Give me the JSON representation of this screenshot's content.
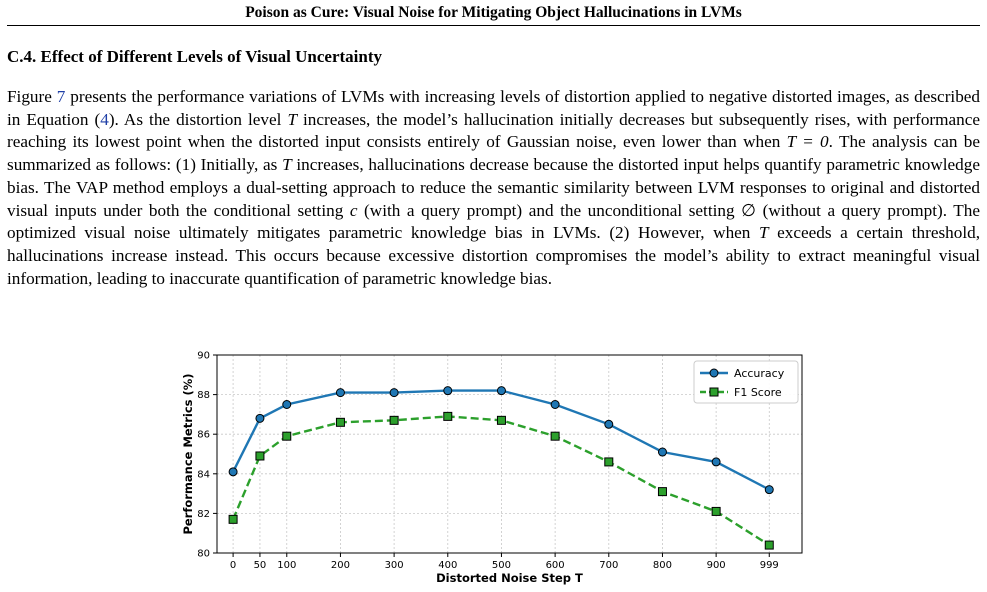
{
  "header": {
    "title": "Poison as Cure: Visual Noise for Mitigating Object Hallucinations in LVMs"
  },
  "section": {
    "title": "C.4. Effect of Different Levels of Visual Uncertainty"
  },
  "paragraph": {
    "s1a": "Figure ",
    "fig_ref": "7",
    "s1b": " presents the performance variations of LVMs with increasing levels of distortion applied to negative distorted images, as described in Equation (",
    "eq_ref": "4",
    "s1c": "). As the distortion level ",
    "var_T": "T",
    "s2": " increases, the model’s hallucination initially decreases but subsequently rises, with performance reaching its lowest point when the distorted input consists entirely of Gaussian noise, even lower than when ",
    "var_T_eq0": "T = 0",
    "s3": ". The analysis can be summarized as follows: (1) Initially, as ",
    "s4": " increases, hallucinations decrease because the distorted input helps quantify parametric knowledge bias. The VAP method employs a dual-setting approach to reduce the semantic similarity between LVM responses to original and distorted visual inputs under both the conditional setting ",
    "var_c": "c",
    "s5": " (with a query prompt) and the unconditional setting ",
    "var_empty": "∅",
    "s6": " (without a query prompt). The optimized visual noise ultimately mitigates parametric knowledge bias in LVMs. (2) However, when ",
    "s7": " exceeds a certain threshold, hallucinations increase instead. This occurs because excessive distortion compromises the model’s ability to extract meaningful visual information, leading to inaccurate quantification of parametric knowledge bias."
  },
  "chart_data": {
    "type": "line",
    "xlabel": "Distorted Noise Step T",
    "ylabel": "Performance Metrics (%)",
    "x": [
      0,
      50,
      100,
      200,
      300,
      400,
      500,
      600,
      700,
      800,
      900,
      999
    ],
    "x_tick_labels": [
      "0",
      "50",
      "100",
      "200",
      "300",
      "400",
      "500",
      "600",
      "700",
      "800",
      "900",
      "999"
    ],
    "ylim": [
      80,
      90
    ],
    "y_ticks": [
      80,
      82,
      84,
      86,
      88,
      90
    ],
    "grid": true,
    "legend": "top-right",
    "series": [
      {
        "name": "Accuracy",
        "values": [
          84.1,
          86.8,
          87.5,
          88.1,
          88.1,
          88.2,
          88.2,
          87.5,
          86.5,
          85.1,
          84.6,
          83.2
        ],
        "color": "#1f77b4",
        "marker": "circle",
        "line": "solid"
      },
      {
        "name": "F1 Score",
        "values": [
          81.7,
          84.9,
          85.9,
          86.6,
          86.7,
          86.9,
          86.7,
          85.9,
          84.6,
          83.1,
          82.1,
          80.4
        ],
        "color": "#2ca02c",
        "marker": "square",
        "line": "dashed"
      }
    ]
  }
}
